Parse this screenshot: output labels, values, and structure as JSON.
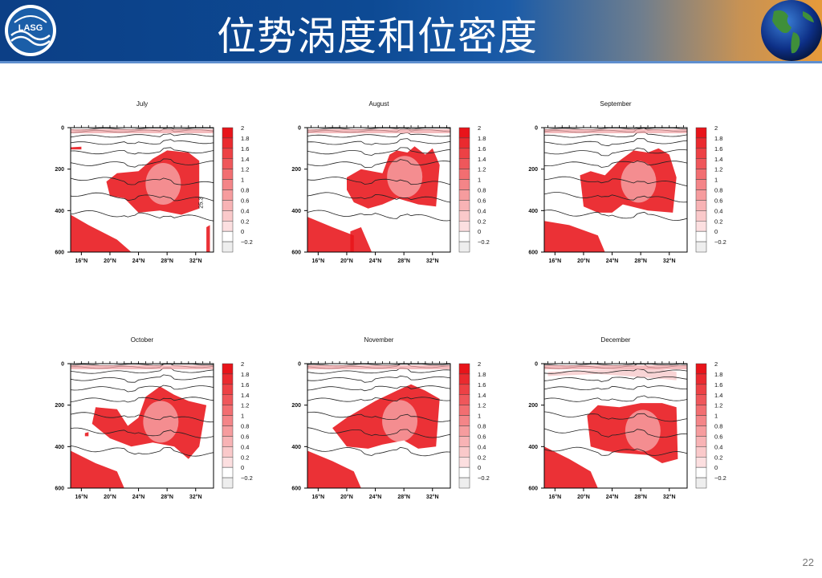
{
  "slide": {
    "title": "位势涡度和位密度",
    "page_number": "22",
    "logo_text": "LASG"
  },
  "colors": {
    "pv_max": "#e8141a",
    "pv_min": "#f6dcdc",
    "header_blue": "#0c3f86",
    "header_orange": "#e79a3a"
  },
  "chart_data": [
    {
      "type": "heatmap",
      "title": "July",
      "x_ticks": [
        "16°N",
        "20°N",
        "24°N",
        "28°N",
        "32°N"
      ],
      "y_ticks": [
        "0",
        "200",
        "400",
        "600"
      ],
      "ylim": [
        600,
        0
      ],
      "colorbar": [
        "2",
        "1.8",
        "1.6",
        "1.4",
        "1.2",
        "1",
        "0.8",
        "0.6",
        "0.4",
        "0.2",
        "0",
        "−0.2"
      ],
      "contour_label": "25.3",
      "variables": [
        "potential vorticity (shaded)",
        "potential density (contours)"
      ]
    },
    {
      "type": "heatmap",
      "title": "August",
      "x_ticks": [
        "16°N",
        "20°N",
        "24°N",
        "28°N",
        "32°N"
      ],
      "y_ticks": [
        "0",
        "200",
        "400",
        "600"
      ],
      "ylim": [
        600,
        0
      ],
      "colorbar": [
        "2",
        "1.8",
        "1.6",
        "1.4",
        "1.2",
        "1",
        "0.8",
        "0.6",
        "0.4",
        "0.2",
        "0",
        "−0.2"
      ]
    },
    {
      "type": "heatmap",
      "title": "September",
      "x_ticks": [
        "16°N",
        "20°N",
        "24°N",
        "28°N",
        "32°N"
      ],
      "y_ticks": [
        "0",
        "200",
        "400",
        "600"
      ],
      "ylim": [
        600,
        0
      ],
      "colorbar": [
        "2",
        "1.8",
        "1.6",
        "1.4",
        "1.2",
        "1",
        "0.8",
        "0.6",
        "0.4",
        "0.2",
        "0",
        "−0.2"
      ]
    },
    {
      "type": "heatmap",
      "title": "October",
      "x_ticks": [
        "16°N",
        "20°N",
        "24°N",
        "28°N",
        "32°N"
      ],
      "y_ticks": [
        "0",
        "200",
        "400",
        "600"
      ],
      "ylim": [
        600,
        0
      ],
      "colorbar": [
        "2",
        "1.8",
        "1.6",
        "1.4",
        "1.2",
        "1",
        "0.8",
        "0.6",
        "0.4",
        "0.2",
        "0",
        "−0.2"
      ]
    },
    {
      "type": "heatmap",
      "title": "November",
      "x_ticks": [
        "16°N",
        "20°N",
        "24°N",
        "28°N",
        "32°N"
      ],
      "y_ticks": [
        "0",
        "200",
        "400",
        "600"
      ],
      "ylim": [
        600,
        0
      ],
      "colorbar": [
        "2",
        "1.8",
        "1.6",
        "1.4",
        "1.2",
        "1",
        "0.8",
        "0.6",
        "0.4",
        "0.2",
        "0",
        "−0.2"
      ]
    },
    {
      "type": "heatmap",
      "title": "December",
      "x_ticks": [
        "16°N",
        "20°N",
        "24°N",
        "28°N",
        "32°N"
      ],
      "y_ticks": [
        "0",
        "200",
        "400",
        "600"
      ],
      "ylim": [
        600,
        0
      ],
      "colorbar": [
        "2",
        "1.8",
        "1.6",
        "1.4",
        "1.2",
        "1",
        "0.8",
        "0.6",
        "0.4",
        "0.2",
        "0",
        "−0.2"
      ]
    }
  ]
}
